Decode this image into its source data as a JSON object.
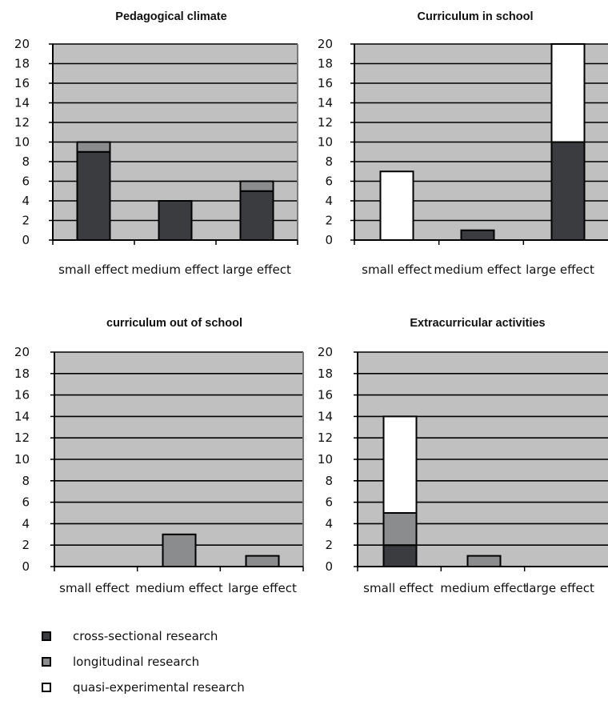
{
  "chart_data": [
    {
      "type": "bar",
      "stacked": true,
      "title": "Pedagogical climate",
      "categories": [
        "small effect",
        "medium effect",
        "large effect"
      ],
      "ylim": [
        0,
        20
      ],
      "yticks": [
        "0",
        "2",
        "4",
        "6",
        "8",
        "10",
        "12",
        "14",
        "16",
        "18",
        "20"
      ],
      "grid": true,
      "series": [
        {
          "name": "cross-sectional research",
          "values": [
            9,
            4,
            5
          ]
        },
        {
          "name": "longitudinal research",
          "values": [
            1,
            0,
            1
          ]
        },
        {
          "name": "quasi-experimental research",
          "values": [
            0,
            0,
            0
          ]
        }
      ]
    },
    {
      "type": "bar",
      "stacked": true,
      "title": "Curriculum in school",
      "categories": [
        "small effect",
        "medium effect",
        "large effect"
      ],
      "ylim": [
        0,
        20
      ],
      "yticks": [
        "0",
        "2",
        "4",
        "6",
        "8",
        "10",
        "12",
        "14",
        "16",
        "18",
        "20"
      ],
      "grid": true,
      "series": [
        {
          "name": "cross-sectional research",
          "values": [
            0,
            1,
            10
          ]
        },
        {
          "name": "longitudinal research",
          "values": [
            0,
            0,
            0
          ]
        },
        {
          "name": "quasi-experimental research",
          "values": [
            7,
            0,
            10
          ]
        }
      ]
    },
    {
      "type": "bar",
      "stacked": true,
      "title": "curriculum out of school",
      "categories": [
        "small effect",
        "medium effect",
        "large effect"
      ],
      "ylim": [
        0,
        20
      ],
      "yticks": [
        "0",
        "2",
        "4",
        "6",
        "8",
        "10",
        "12",
        "14",
        "16",
        "18",
        "20"
      ],
      "grid": true,
      "series": [
        {
          "name": "cross-sectional research",
          "values": [
            0,
            0,
            0
          ]
        },
        {
          "name": "longitudinal research",
          "values": [
            0,
            3,
            1
          ]
        },
        {
          "name": "quasi-experimental research",
          "values": [
            0,
            0,
            0
          ]
        }
      ]
    },
    {
      "type": "bar",
      "stacked": true,
      "title": "Extracurricular activities",
      "categories": [
        "small effect",
        "medium effect",
        "large effect"
      ],
      "ylim": [
        0,
        20
      ],
      "yticks": [
        "0",
        "2",
        "4",
        "6",
        "8",
        "10",
        "12",
        "14",
        "16",
        "18",
        "20"
      ],
      "grid": true,
      "series": [
        {
          "name": "cross-sectional research",
          "values": [
            2,
            0,
            0
          ]
        },
        {
          "name": "longitudinal research",
          "values": [
            3,
            1,
            0
          ]
        },
        {
          "name": "quasi-experimental research",
          "values": [
            9,
            0,
            0
          ]
        }
      ]
    }
  ],
  "legend": {
    "items": [
      {
        "label": "cross-sectional research",
        "color": "#3a3c40"
      },
      {
        "label": "longitudinal research",
        "color": "#8a8c8e"
      },
      {
        "label": "quasi-experimental research",
        "color": "#ffffff"
      }
    ]
  },
  "colors": {
    "plot_background": "#c0c0c0",
    "grid": "#000000",
    "cross_sectional": "#3a3c40",
    "longitudinal": "#8a8c8e",
    "quasi_experimental": "#ffffff"
  }
}
